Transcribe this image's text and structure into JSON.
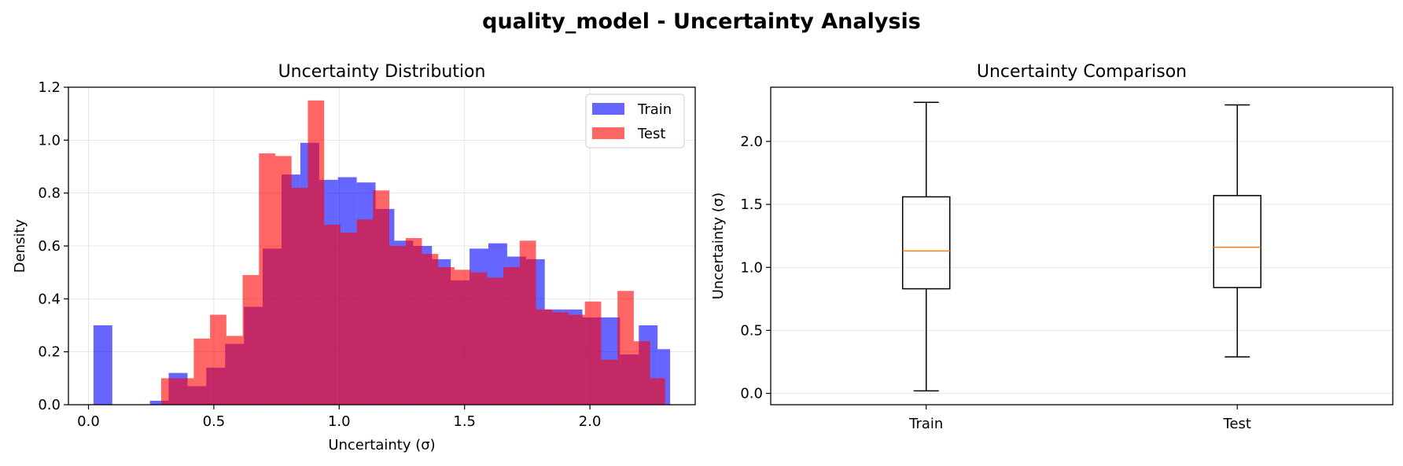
{
  "figure": {
    "suptitle": "quality_model - Uncertainty Analysis"
  },
  "chart_data": [
    {
      "type": "histogram",
      "title": "Uncertainty Distribution",
      "xlabel": "Uncertainty (σ)",
      "ylabel": "Density",
      "xlim": [
        -0.08,
        2.42
      ],
      "ylim": [
        0,
        1.2
      ],
      "xticks": [
        "0.0",
        "0.5",
        "1.0",
        "1.5",
        "2.0"
      ],
      "xtick_values": [
        0,
        0.5,
        1.0,
        1.5,
        2.0
      ],
      "yticks": [
        "0.0",
        "0.2",
        "0.4",
        "0.6",
        "0.8",
        "1.0",
        "1.2"
      ],
      "ytick_values": [
        0,
        0.2,
        0.4,
        0.6,
        0.8,
        1.0,
        1.2
      ],
      "grid": true,
      "legend_position": "upper right",
      "series": [
        {
          "name": "Train",
          "color": "#0000ff",
          "alpha": 0.6,
          "bin_edges": [
            0.02,
            0.095,
            0.17,
            0.245,
            0.32,
            0.395,
            0.47,
            0.545,
            0.62,
            0.695,
            0.77,
            0.845,
            0.92,
            0.995,
            1.07,
            1.145,
            1.22,
            1.295,
            1.37,
            1.445,
            1.52,
            1.595,
            1.67,
            1.745,
            1.82,
            1.895,
            1.97,
            2.045,
            2.12,
            2.195,
            2.27,
            2.32
          ],
          "values": [
            0.3,
            0,
            0,
            0.015,
            0.12,
            0.07,
            0.14,
            0.23,
            0.37,
            0.59,
            0.87,
            0.99,
            0.85,
            0.86,
            0.84,
            0.74,
            0.62,
            0.6,
            0.55,
            0.47,
            0.59,
            0.61,
            0.56,
            0.55,
            0.36,
            0.36,
            0.33,
            0.33,
            0.19,
            0.3,
            0.21
          ]
        },
        {
          "name": "Test",
          "color": "#ff0000",
          "alpha": 0.6,
          "bin_edges": [
            0.29,
            0.355,
            0.42,
            0.485,
            0.55,
            0.615,
            0.68,
            0.745,
            0.81,
            0.875,
            0.94,
            1.005,
            1.07,
            1.135,
            1.2,
            1.265,
            1.33,
            1.395,
            1.46,
            1.525,
            1.59,
            1.655,
            1.72,
            1.785,
            1.85,
            1.915,
            1.98,
            2.045,
            2.11,
            2.175,
            2.24,
            2.3
          ],
          "values": [
            0.1,
            0.1,
            0.25,
            0.34,
            0.26,
            0.49,
            0.95,
            0.94,
            0.82,
            1.15,
            0.68,
            0.65,
            0.7,
            0.81,
            0.6,
            0.63,
            0.57,
            0.52,
            0.51,
            0.5,
            0.48,
            0.52,
            0.62,
            0.36,
            0.35,
            0.34,
            0.39,
            0.17,
            0.43,
            0.24,
            0.1
          ]
        }
      ]
    },
    {
      "type": "boxplot",
      "title": "Uncertainty Comparison",
      "xlabel": "",
      "ylabel": "Uncertainty (σ)",
      "ylim": [
        -0.09,
        2.43
      ],
      "yticks": [
        "0.0",
        "0.5",
        "1.0",
        "1.5",
        "2.0"
      ],
      "ytick_values": [
        0,
        0.5,
        1.0,
        1.5,
        2.0
      ],
      "grid": true,
      "categories": [
        "Train",
        "Test"
      ],
      "boxes": [
        {
          "label": "Train",
          "whisker_low": 0.02,
          "q1": 0.83,
          "median": 1.13,
          "q3": 1.56,
          "whisker_high": 2.31
        },
        {
          "label": "Test",
          "whisker_low": 0.29,
          "q1": 0.84,
          "median": 1.16,
          "q3": 1.57,
          "whisker_high": 2.29
        }
      ],
      "median_color": "#ff7f0e"
    }
  ]
}
